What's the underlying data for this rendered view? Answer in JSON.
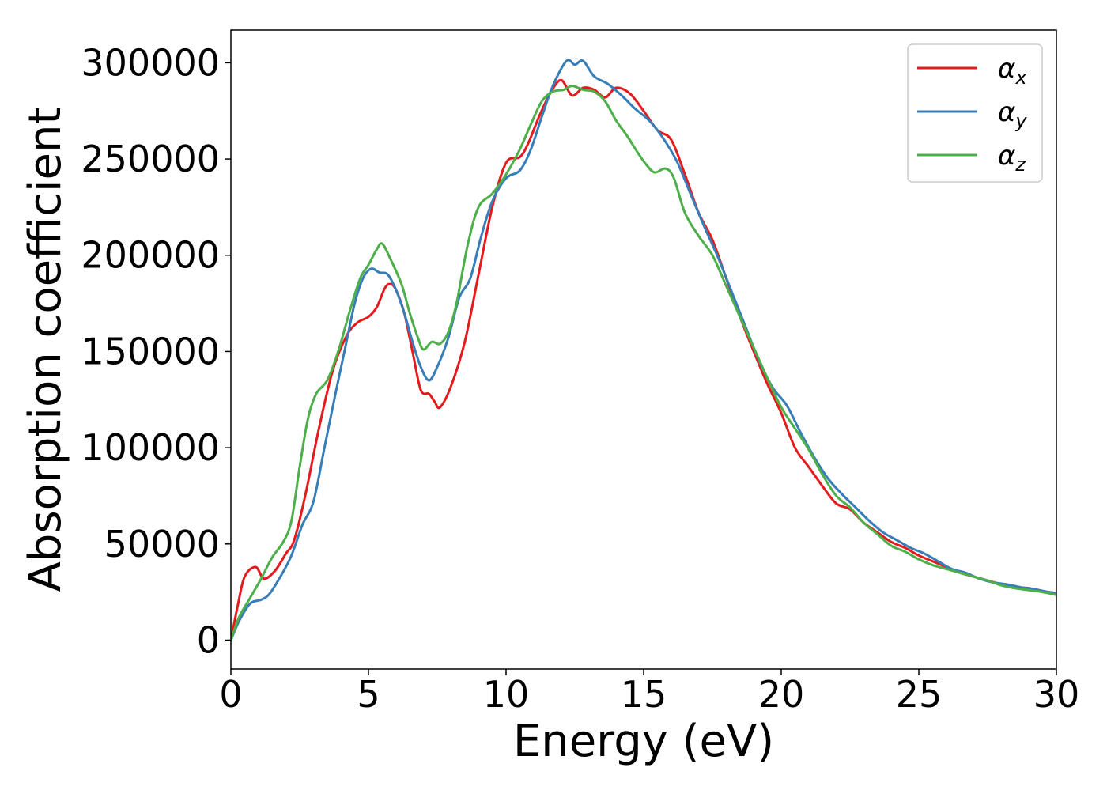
{
  "chart_data": {
    "type": "line",
    "title": "",
    "xlabel": "Energy (eV)",
    "ylabel": "Absorption coefficient",
    "xlim": [
      0,
      30
    ],
    "ylim": [
      -15000,
      317000
    ],
    "xticks": [
      0,
      5,
      10,
      15,
      20,
      25,
      30
    ],
    "xtick_labels": [
      "0",
      "5",
      "10",
      "15",
      "20",
      "25",
      "30"
    ],
    "yticks": [
      0,
      50000,
      100000,
      150000,
      200000,
      250000,
      300000
    ],
    "ytick_labels": [
      "0",
      "50000",
      "100000",
      "150000",
      "200000",
      "250000",
      "300000"
    ],
    "grid": false,
    "legend_position": "top-right",
    "series": [
      {
        "name": "αx",
        "legend_base": "α",
        "legend_sub": "x",
        "color": "#e41a1c",
        "points": [
          [
            0,
            0
          ],
          [
            0.25,
            18000
          ],
          [
            0.5,
            33000
          ],
          [
            0.9,
            38000
          ],
          [
            1.2,
            32000
          ],
          [
            1.6,
            36000
          ],
          [
            2.0,
            45000
          ],
          [
            2.3,
            52000
          ],
          [
            2.7,
            75000
          ],
          [
            3.2,
            110000
          ],
          [
            3.7,
            140000
          ],
          [
            4.2,
            158000
          ],
          [
            4.6,
            165000
          ],
          [
            5.0,
            168000
          ],
          [
            5.3,
            173000
          ],
          [
            5.6,
            183000
          ],
          [
            5.8,
            185000
          ],
          [
            6.0,
            182000
          ],
          [
            6.3,
            170000
          ],
          [
            6.6,
            150000
          ],
          [
            6.9,
            130000
          ],
          [
            7.2,
            128000
          ],
          [
            7.4,
            124000
          ],
          [
            7.6,
            121000
          ],
          [
            8.0,
            132000
          ],
          [
            8.5,
            155000
          ],
          [
            9.0,
            190000
          ],
          [
            9.5,
            225000
          ],
          [
            10.0,
            248000
          ],
          [
            10.5,
            251000
          ],
          [
            10.8,
            258000
          ],
          [
            11.2,
            272000
          ],
          [
            11.6,
            284000
          ],
          [
            12.0,
            291000
          ],
          [
            12.4,
            283000
          ],
          [
            12.8,
            287000
          ],
          [
            13.2,
            286000
          ],
          [
            13.6,
            282000
          ],
          [
            14.0,
            287000
          ],
          [
            14.5,
            284000
          ],
          [
            15.0,
            275000
          ],
          [
            15.5,
            265000
          ],
          [
            16.0,
            260000
          ],
          [
            16.5,
            242000
          ],
          [
            17.0,
            222000
          ],
          [
            17.5,
            208000
          ],
          [
            18.0,
            188000
          ],
          [
            18.5,
            168000
          ],
          [
            19.0,
            150000
          ],
          [
            19.5,
            133000
          ],
          [
            20.0,
            118000
          ],
          [
            20.5,
            100000
          ],
          [
            21.0,
            90000
          ],
          [
            21.5,
            80000
          ],
          [
            22.0,
            71000
          ],
          [
            22.5,
            68000
          ],
          [
            23.0,
            61000
          ],
          [
            23.5,
            56000
          ],
          [
            24.0,
            51000
          ],
          [
            24.5,
            48000
          ],
          [
            25.0,
            44000
          ],
          [
            25.5,
            41000
          ],
          [
            26.0,
            38000
          ],
          [
            26.5,
            35000
          ],
          [
            27.0,
            33000
          ],
          [
            27.5,
            31000
          ],
          [
            28.0,
            29000
          ],
          [
            28.5,
            27500
          ],
          [
            29.0,
            27000
          ],
          [
            29.5,
            25500
          ],
          [
            30.0,
            24500
          ]
        ]
      },
      {
        "name": "αy",
        "legend_base": "α",
        "legend_sub": "y",
        "color": "#377eb8",
        "points": [
          [
            0,
            0
          ],
          [
            0.3,
            10000
          ],
          [
            0.7,
            19000
          ],
          [
            1.1,
            21000
          ],
          [
            1.4,
            24000
          ],
          [
            1.8,
            33000
          ],
          [
            2.2,
            44000
          ],
          [
            2.6,
            60000
          ],
          [
            3.0,
            72000
          ],
          [
            3.4,
            100000
          ],
          [
            3.8,
            128000
          ],
          [
            4.2,
            155000
          ],
          [
            4.5,
            175000
          ],
          [
            4.8,
            188000
          ],
          [
            5.1,
            193000
          ],
          [
            5.4,
            191000
          ],
          [
            5.7,
            190000
          ],
          [
            6.0,
            182000
          ],
          [
            6.3,
            170000
          ],
          [
            6.6,
            155000
          ],
          [
            6.9,
            142000
          ],
          [
            7.2,
            135000
          ],
          [
            7.5,
            142000
          ],
          [
            7.9,
            157000
          ],
          [
            8.3,
            178000
          ],
          [
            8.7,
            188000
          ],
          [
            9.1,
            210000
          ],
          [
            9.5,
            228000
          ],
          [
            10.0,
            240000
          ],
          [
            10.5,
            244000
          ],
          [
            10.9,
            255000
          ],
          [
            11.3,
            272000
          ],
          [
            11.7,
            288000
          ],
          [
            12.2,
            301000
          ],
          [
            12.5,
            299000
          ],
          [
            12.8,
            301000
          ],
          [
            13.2,
            293000
          ],
          [
            13.7,
            289000
          ],
          [
            14.2,
            283000
          ],
          [
            14.7,
            276000
          ],
          [
            15.2,
            270000
          ],
          [
            15.7,
            261000
          ],
          [
            16.2,
            249000
          ],
          [
            16.7,
            232000
          ],
          [
            17.2,
            215000
          ],
          [
            17.7,
            199000
          ],
          [
            18.2,
            181000
          ],
          [
            18.7,
            163000
          ],
          [
            19.2,
            145000
          ],
          [
            19.7,
            131000
          ],
          [
            20.2,
            122000
          ],
          [
            20.7,
            108000
          ],
          [
            21.2,
            95000
          ],
          [
            21.7,
            84000
          ],
          [
            22.2,
            76000
          ],
          [
            22.7,
            69000
          ],
          [
            23.2,
            62000
          ],
          [
            23.7,
            56000
          ],
          [
            24.2,
            52000
          ],
          [
            24.7,
            48000
          ],
          [
            25.2,
            45000
          ],
          [
            25.7,
            41000
          ],
          [
            26.2,
            37000
          ],
          [
            26.7,
            35000
          ],
          [
            27.2,
            32000
          ],
          [
            27.7,
            30000
          ],
          [
            28.2,
            29000
          ],
          [
            28.7,
            27500
          ],
          [
            29.2,
            26500
          ],
          [
            29.7,
            25000
          ],
          [
            30.0,
            24500
          ]
        ]
      },
      {
        "name": "αz",
        "legend_base": "α",
        "legend_sub": "z",
        "color": "#4daf4a",
        "points": [
          [
            0,
            0
          ],
          [
            0.3,
            12000
          ],
          [
            0.7,
            22000
          ],
          [
            1.1,
            32000
          ],
          [
            1.5,
            43000
          ],
          [
            1.9,
            51000
          ],
          [
            2.2,
            62000
          ],
          [
            2.5,
            90000
          ],
          [
            2.8,
            115000
          ],
          [
            3.1,
            128000
          ],
          [
            3.5,
            135000
          ],
          [
            3.9,
            150000
          ],
          [
            4.3,
            170000
          ],
          [
            4.7,
            188000
          ],
          [
            5.0,
            195000
          ],
          [
            5.3,
            203000
          ],
          [
            5.5,
            206000
          ],
          [
            5.8,
            198000
          ],
          [
            6.2,
            185000
          ],
          [
            6.5,
            170000
          ],
          [
            6.8,
            157000
          ],
          [
            7.0,
            151000
          ],
          [
            7.3,
            155000
          ],
          [
            7.6,
            154000
          ],
          [
            7.9,
            160000
          ],
          [
            8.2,
            175000
          ],
          [
            8.6,
            205000
          ],
          [
            9.0,
            225000
          ],
          [
            9.5,
            232000
          ],
          [
            10.0,
            242000
          ],
          [
            10.5,
            255000
          ],
          [
            10.9,
            268000
          ],
          [
            11.3,
            280000
          ],
          [
            11.7,
            285000
          ],
          [
            12.1,
            286000
          ],
          [
            12.4,
            288000
          ],
          [
            12.8,
            286000
          ],
          [
            13.2,
            285000
          ],
          [
            13.6,
            280000
          ],
          [
            14.0,
            270000
          ],
          [
            14.4,
            262000
          ],
          [
            14.8,
            253000
          ],
          [
            15.1,
            247000
          ],
          [
            15.4,
            243000
          ],
          [
            15.8,
            245000
          ],
          [
            16.1,
            240000
          ],
          [
            16.5,
            222000
          ],
          [
            17.0,
            210000
          ],
          [
            17.5,
            200000
          ],
          [
            18.0,
            184000
          ],
          [
            18.5,
            168000
          ],
          [
            19.0,
            152000
          ],
          [
            19.5,
            136000
          ],
          [
            20.0,
            121000
          ],
          [
            20.5,
            110000
          ],
          [
            21.0,
            99000
          ],
          [
            21.5,
            86000
          ],
          [
            22.0,
            75000
          ],
          [
            22.5,
            69000
          ],
          [
            23.0,
            61000
          ],
          [
            23.5,
            55000
          ],
          [
            24.0,
            49000
          ],
          [
            24.5,
            46000
          ],
          [
            25.0,
            42000
          ],
          [
            25.5,
            39000
          ],
          [
            26.0,
            37000
          ],
          [
            26.5,
            35000
          ],
          [
            27.0,
            33000
          ],
          [
            27.5,
            31000
          ],
          [
            28.0,
            28500
          ],
          [
            28.5,
            27000
          ],
          [
            29.0,
            26000
          ],
          [
            29.5,
            25000
          ],
          [
            30.0,
            23500
          ]
        ]
      }
    ]
  }
}
